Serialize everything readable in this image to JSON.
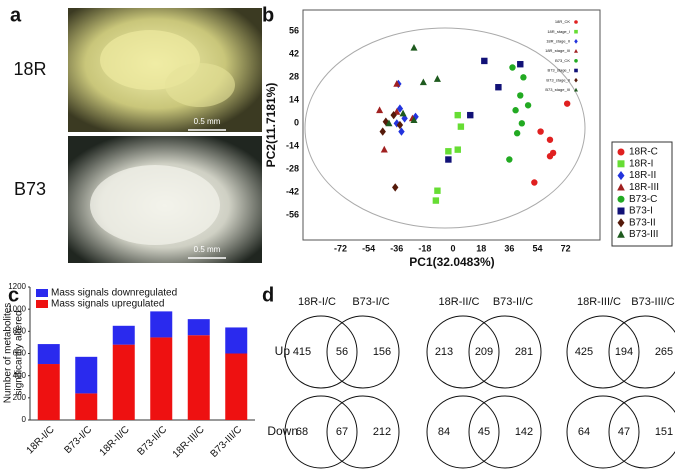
{
  "panel_labels": [
    "a",
    "b",
    "c",
    "d"
  ],
  "photos": [
    {
      "label": "18R",
      "scale": "0.5 mm"
    },
    {
      "label": "B73",
      "scale": "0.5 mm"
    }
  ],
  "chart_data": [
    {
      "type": "scatter",
      "xlabel": "PC1(32.0483%)",
      "ylabel": "PC2(11.7181%)",
      "xlim": [
        -96,
        94
      ],
      "ylim": [
        -71,
        69
      ],
      "xticks": [
        -72,
        -54,
        -36,
        -18,
        0,
        18,
        36,
        54,
        72
      ],
      "yticks": [
        56,
        42,
        28,
        14,
        0,
        -14,
        -28,
        -42,
        -56
      ],
      "grid": false,
      "legend": "right",
      "inner_legend": [
        "18R_CK",
        "18R_stage_I",
        "18R_stage_II",
        "18R_stage_III",
        "B73_CK",
        "B73_stage_I",
        "B73_stage_II",
        "B73_stage_III"
      ],
      "series": [
        {
          "name": "18R-C",
          "color": "#e02020",
          "marker": "circle",
          "x": [
            56,
            62,
            64,
            62,
            52,
            73
          ],
          "values": [
            -5,
            -10,
            -18,
            -20,
            -36,
            12
          ]
        },
        {
          "name": "18R-I",
          "color": "#66dd33",
          "marker": "square",
          "x": [
            3,
            5,
            3,
            -3,
            -10,
            -11
          ],
          "values": [
            5,
            -2,
            -16,
            -17,
            -41,
            -47
          ]
        },
        {
          "name": "18R-II",
          "color": "#2233dd",
          "marker": "diamond",
          "x": [
            -35,
            -34,
            -36,
            -33,
            -24,
            -31
          ],
          "values": [
            24,
            9,
            0,
            -5,
            4,
            3
          ]
        },
        {
          "name": "18R-III",
          "color": "#a02020",
          "marker": "triangle",
          "x": [
            -47,
            -44,
            -36,
            -36,
            -26
          ],
          "values": [
            8,
            -16,
            7,
            24,
            3
          ]
        },
        {
          "name": "B73-C",
          "color": "#22aa22",
          "marker": "circle",
          "x": [
            38,
            45,
            43,
            40,
            44,
            41,
            36,
            48
          ],
          "values": [
            34,
            28,
            17,
            8,
            0,
            -6,
            -22,
            11
          ]
        },
        {
          "name": "B73-I",
          "color": "#111177",
          "marker": "square",
          "x": [
            20,
            43,
            29,
            -3,
            11
          ],
          "values": [
            38,
            36,
            22,
            -22,
            5
          ]
        },
        {
          "name": "B73-II",
          "color": "#551a0a",
          "marker": "diamond",
          "x": [
            -45,
            -37,
            -38,
            -34,
            -43
          ],
          "values": [
            -5,
            -39,
            5,
            -1,
            1
          ]
        },
        {
          "name": "B73-III",
          "color": "#1e5a1e",
          "marker": "triangle",
          "x": [
            -25,
            -19,
            -10,
            -41,
            -25,
            -32
          ],
          "values": [
            46,
            25,
            27,
            0,
            2,
            6
          ]
        }
      ]
    },
    {
      "type": "bar",
      "stacked": true,
      "ylabel": [
        "Number of metabolites",
        "significantly altered"
      ],
      "categories": [
        "18R-I/C",
        "B73-I/C",
        "18R-II/C",
        "B73-II/C",
        "18R-III/C",
        "B73-III/C"
      ],
      "ylim": [
        0,
        1200
      ],
      "yticks": [
        0,
        200,
        400,
        600,
        800,
        1000,
        1200
      ],
      "grid": false,
      "legend": "upper left",
      "series": [
        {
          "name": "Mass signals downregulated",
          "color": "#2a2aee",
          "values": [
            180,
            330,
            170,
            235,
            145,
            235
          ]
        },
        {
          "name": "Mass signals upregulated",
          "color": "#ee1111",
          "values": [
            505,
            240,
            680,
            745,
            765,
            600
          ]
        }
      ]
    }
  ],
  "venn": {
    "rows": [
      "Up",
      "Down"
    ],
    "pairs": [
      {
        "left": "18R-I/C",
        "right": "B73-I/C",
        "up": [
          415,
          56,
          156
        ],
        "down": [
          68,
          67,
          212
        ]
      },
      {
        "left": "18R-II/C",
        "right": "B73-II/C",
        "up": [
          213,
          209,
          281
        ],
        "down": [
          84,
          45,
          142
        ]
      },
      {
        "left": "18R-III/C",
        "right": "B73-III/C",
        "up": [
          425,
          194,
          265
        ],
        "down": [
          64,
          47,
          151
        ]
      }
    ]
  }
}
